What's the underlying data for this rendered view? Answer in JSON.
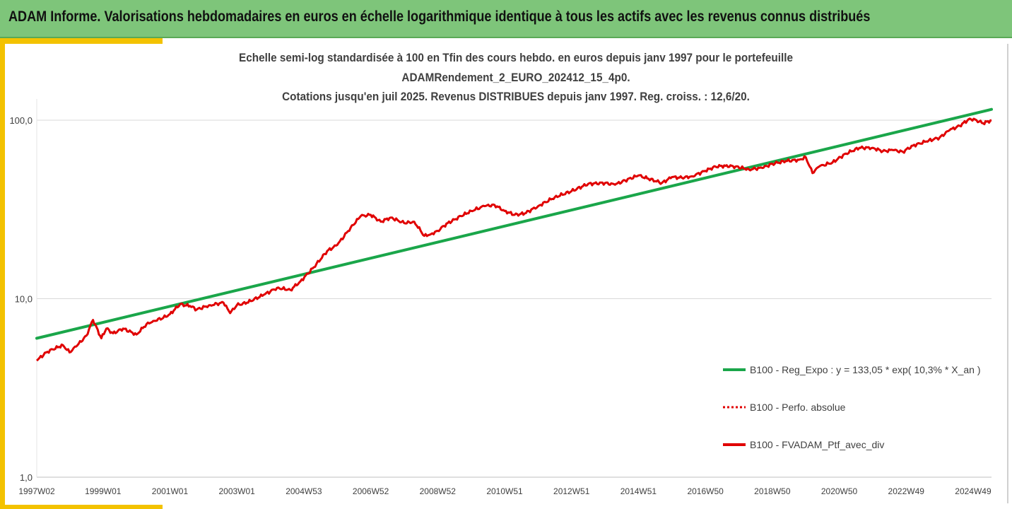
{
  "header": {
    "title": "ADAM Informe. Valorisations hebdomadaires en euros en échelle logarithmique identique à tous les actifs avec les revenus connus distribués"
  },
  "chart_data": {
    "type": "line",
    "title_lines": [
      "Echelle semi-log standardisée à 100 en Tfin des cours hebdo.  en euros depuis janv 1997 pour le portefeuille",
      "ADAMRendement_2_EURO_202412_15_4p0.",
      "Cotations  jusqu'en juil 2025. Revenus DISTRIBUES depuis janv 1997. Reg. croiss. : 12,6/20."
    ],
    "y_scale": "log",
    "ylim": [
      1,
      180
    ],
    "y_ticks": [
      {
        "value": 1,
        "label": "1,0"
      },
      {
        "value": 10,
        "label": "10,0"
      },
      {
        "value": 100,
        "label": "100,0"
      }
    ],
    "xlim": [
      1997.02,
      2025.55
    ],
    "x_ticks": [
      {
        "value": 1997.02,
        "label": "1997W02"
      },
      {
        "value": 1999.0,
        "label": "1999W01"
      },
      {
        "value": 2001.0,
        "label": "2001W01"
      },
      {
        "value": 2003.0,
        "label": "2003W01"
      },
      {
        "value": 2005.0,
        "label": "2004W53"
      },
      {
        "value": 2007.0,
        "label": "2006W52"
      },
      {
        "value": 2009.0,
        "label": "2008W52"
      },
      {
        "value": 2011.0,
        "label": "2010W51"
      },
      {
        "value": 2013.0,
        "label": "2012W51"
      },
      {
        "value": 2015.0,
        "label": "2014W51"
      },
      {
        "value": 2017.0,
        "label": "2016W50"
      },
      {
        "value": 2019.0,
        "label": "2018W50"
      },
      {
        "value": 2021.0,
        "label": "2020W50"
      },
      {
        "value": 2023.0,
        "label": "2022W49"
      },
      {
        "value": 2025.0,
        "label": "2024W49"
      }
    ],
    "grid": {
      "horizontal": true,
      "vertical": false
    },
    "legend_position": "right",
    "series": [
      {
        "name": "B100 - Reg_Expo : y = 133,05 * exp( 10,3% *  X_an )",
        "color": "#1aa64a",
        "style": "solid",
        "x": [
          1997.02,
          2025.55
        ],
        "y": [
          6.0,
          115.0
        ]
      },
      {
        "name": "B100 - Perfo. absolue",
        "color": "#e00000",
        "style": "dotted",
        "x": [],
        "y": []
      },
      {
        "name": "B100 - FVADAM_Ptf_avec_div",
        "color": "#e00000",
        "style": "solid",
        "x": [
          1997.02,
          1997.3,
          1997.5,
          1997.8,
          1998.0,
          1998.2,
          1998.5,
          1998.7,
          1998.95,
          1999.1,
          1999.3,
          1999.6,
          2000.0,
          2000.3,
          2000.5,
          2000.8,
          2001.0,
          2001.3,
          2001.6,
          2001.8,
          2002.2,
          2002.6,
          2002.8,
          2003.0,
          2003.3,
          2003.8,
          2004.2,
          2004.6,
          2004.9,
          2005.3,
          2005.7,
          2006.0,
          2006.4,
          2006.7,
          2007.0,
          2007.3,
          2007.6,
          2008.0,
          2008.3,
          2008.6,
          2008.8,
          2009.0,
          2009.3,
          2009.7,
          2010.0,
          2010.4,
          2010.7,
          2011.0,
          2011.3,
          2011.6,
          2012.0,
          2012.5,
          2013.0,
          2013.5,
          2014.0,
          2014.3,
          2014.6,
          2015.0,
          2015.3,
          2015.7,
          2016.0,
          2016.3,
          2016.6,
          2017.0,
          2017.3,
          2017.6,
          2017.9,
          2018.3,
          2018.7,
          2019.0,
          2019.4,
          2019.8,
          2020.0,
          2020.2,
          2020.4,
          2020.8,
          2021.2,
          2021.6,
          2022.0,
          2022.3,
          2022.6,
          2022.9,
          2023.2,
          2023.6,
          2024.0,
          2024.3,
          2024.6,
          2024.9,
          2025.1,
          2025.3,
          2025.55
        ],
        "y": [
          4.5,
          5.0,
          5.2,
          5.5,
          5.0,
          5.4,
          6.2,
          7.6,
          6.0,
          6.8,
          6.4,
          6.8,
          6.3,
          7.2,
          7.5,
          7.8,
          8.2,
          9.3,
          9.1,
          8.7,
          9.2,
          9.5,
          8.3,
          9.2,
          9.5,
          10.5,
          11.5,
          11.2,
          12.5,
          15.0,
          18.5,
          20.0,
          25.0,
          29.0,
          29.5,
          27.0,
          28.5,
          26.5,
          27.0,
          22.5,
          23.0,
          24.0,
          26.5,
          29.0,
          31.0,
          33.0,
          33.5,
          31.0,
          29.5,
          30.0,
          33.0,
          37.0,
          40.0,
          44.0,
          44.5,
          43.5,
          46.0,
          49.0,
          47.0,
          44.5,
          48.0,
          47.5,
          48.5,
          52.0,
          55.0,
          55.5,
          55.0,
          53.0,
          54.0,
          57.0,
          59.0,
          60.0,
          62.0,
          50.5,
          55.0,
          58.0,
          65.0,
          70.0,
          70.0,
          67.0,
          68.0,
          66.5,
          72.0,
          76.0,
          80.0,
          88.0,
          93.0,
          102.0,
          100.0,
          96.0,
          100.0
        ]
      }
    ]
  }
}
